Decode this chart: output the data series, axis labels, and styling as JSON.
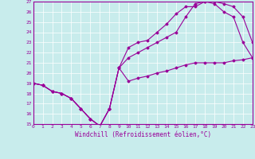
{
  "xlabel": "Windchill (Refroidissement éolien,°C)",
  "bg_color": "#c8ecec",
  "line_color": "#990099",
  "grid_color": "#ffffff",
  "xmin": 0,
  "xmax": 23,
  "ymin": 15,
  "ymax": 27,
  "line1_x": [
    0,
    1,
    2,
    3,
    4,
    5,
    6,
    7,
    8,
    9,
    10,
    11,
    12,
    13,
    14,
    15,
    16,
    17,
    18,
    19,
    20,
    21,
    22,
    23
  ],
  "line1_y": [
    19.0,
    18.8,
    18.2,
    18.0,
    17.5,
    16.5,
    15.5,
    14.8,
    16.5,
    20.5,
    19.2,
    19.5,
    19.7,
    20.0,
    20.2,
    20.5,
    20.8,
    21.0,
    21.0,
    21.0,
    21.0,
    21.2,
    21.3,
    21.5
  ],
  "line2_x": [
    0,
    1,
    2,
    3,
    4,
    5,
    6,
    7,
    8,
    9,
    10,
    11,
    12,
    13,
    14,
    15,
    16,
    17,
    18,
    19,
    20,
    21,
    22,
    23
  ],
  "line2_y": [
    19.0,
    18.8,
    18.2,
    18.0,
    17.5,
    16.5,
    15.5,
    14.8,
    16.5,
    20.5,
    22.5,
    23.0,
    23.2,
    24.0,
    24.8,
    25.8,
    26.5,
    26.5,
    27.0,
    27.0,
    26.8,
    26.5,
    25.5,
    23.0
  ],
  "line3_x": [
    0,
    1,
    2,
    3,
    4,
    5,
    6,
    7,
    8,
    9,
    10,
    11,
    12,
    13,
    14,
    15,
    16,
    17,
    18,
    19,
    20,
    21,
    22,
    23
  ],
  "line3_y": [
    19.0,
    18.8,
    18.2,
    18.0,
    17.5,
    16.5,
    15.5,
    14.8,
    16.5,
    20.5,
    21.5,
    22.0,
    22.5,
    23.0,
    23.5,
    24.0,
    25.5,
    26.8,
    27.0,
    26.8,
    26.0,
    25.5,
    23.0,
    21.5
  ],
  "xtick_labels": [
    "0",
    "1",
    "2",
    "3",
    "4",
    "5",
    "6",
    "7",
    "8",
    "9",
    "10",
    "11",
    "12",
    "13",
    "14",
    "15",
    "16",
    "17",
    "18",
    "19",
    "20",
    "21",
    "22",
    "23"
  ],
  "ytick_labels": [
    "15",
    "16",
    "17",
    "18",
    "19",
    "20",
    "21",
    "22",
    "23",
    "24",
    "25",
    "26",
    "27"
  ]
}
